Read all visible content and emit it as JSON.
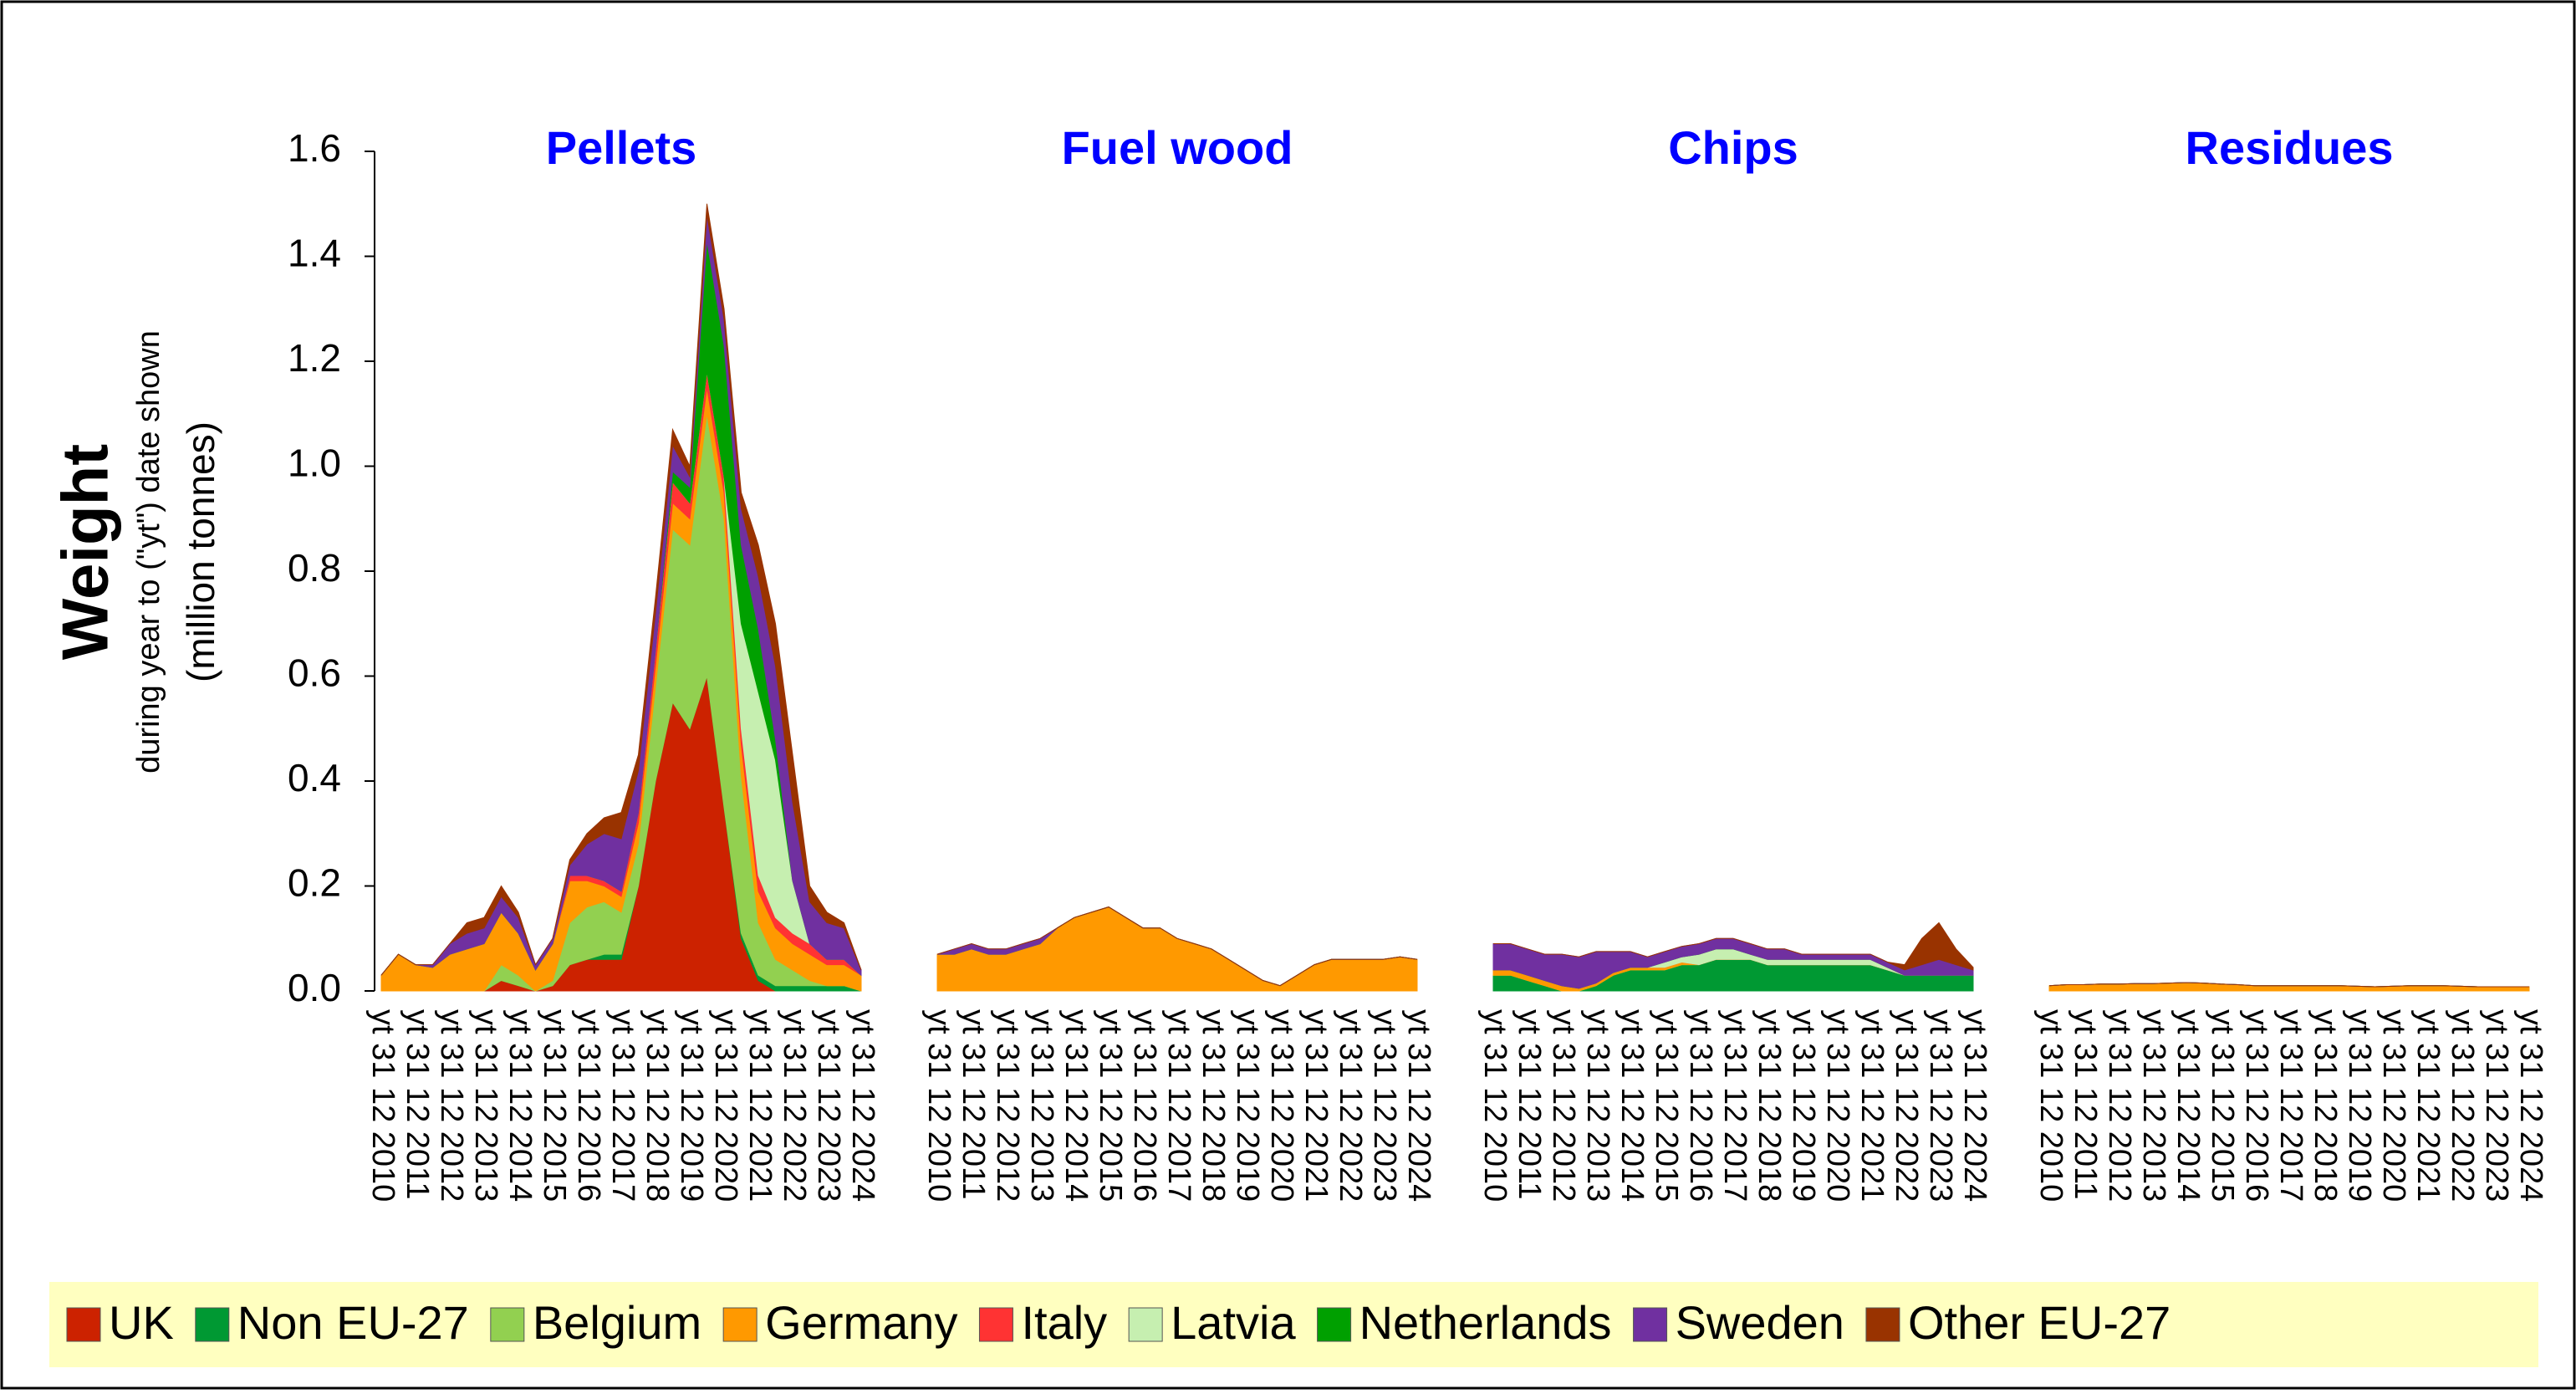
{
  "chart_data": {
    "type": "area",
    "stacked": true,
    "panels": [
      "Pellets",
      "Fuel wood",
      "Chips",
      "Residues"
    ],
    "y_title": "Weight",
    "y_subtitle": "during year to (\"yt\") date shown",
    "y_unit": "(million tonnes)",
    "categories": [
      "yt 31 12 2010",
      null,
      "yt 31 12 2011",
      null,
      "yt 31 12 2012",
      null,
      "yt 31 12 2013",
      null,
      "yt 31 12 2014",
      null,
      "yt 31 12 2015",
      null,
      "yt 31 12 2016",
      null,
      "yt 31 12 2017",
      null,
      "yt 31 12 2018",
      null,
      "yt 31 12 2019",
      null,
      "yt 31 12 2020",
      null,
      "yt 31 12 2021",
      null,
      "yt 31 12 2022",
      null,
      "yt 31 12 2023",
      null,
      "yt 31 12 2024"
    ],
    "ylim": [
      0,
      1.6
    ],
    "yticks": [
      {
        "value": 0,
        "label": "0.0"
      },
      0.2,
      0.4,
      0.6,
      0.8,
      {
        "value": 1,
        "label": "1.0"
      },
      1.2,
      1.4,
      1.6
    ],
    "series": [
      {
        "name": "UK",
        "color": "#cc2200",
        "values": [
          [
            0,
            0,
            0,
            0,
            0,
            0,
            0,
            0.02,
            0.01,
            0,
            0.01,
            0.05,
            0.06,
            0.06,
            0.06,
            0.2,
            0.4,
            0.55,
            0.5,
            0.6,
            0.35,
            0.1,
            0.02,
            0,
            0,
            0,
            0,
            0,
            0
          ],
          [
            0,
            0,
            0,
            0,
            0,
            0,
            0,
            0,
            0,
            0,
            0,
            0,
            0,
            0,
            0,
            0,
            0,
            0,
            0,
            0,
            0,
            0,
            0,
            0,
            0,
            0,
            0,
            0,
            0
          ],
          [
            0,
            0,
            0,
            0,
            0,
            0,
            0,
            0,
            0,
            0,
            0,
            0,
            0,
            0,
            0,
            0,
            0,
            0,
            0,
            0,
            0,
            0,
            0,
            0,
            0,
            0,
            0,
            0,
            0
          ],
          [
            0,
            0,
            0,
            0,
            0,
            0,
            0,
            0,
            0,
            0,
            0,
            0,
            0,
            0,
            0,
            0,
            0,
            0,
            0,
            0,
            0,
            0,
            0,
            0,
            0,
            0,
            0,
            0,
            0
          ]
        ]
      },
      {
        "name": "Non EU-27",
        "color": "#009933",
        "values": [
          [
            0,
            0,
            0,
            0,
            0,
            0,
            0,
            0,
            0,
            0,
            0,
            0,
            0,
            0.01,
            0.01,
            0,
            0,
            0,
            0,
            0,
            0,
            0.01,
            0.01,
            0.01,
            0.01,
            0.01,
            0.01,
            0.01,
            0
          ],
          [
            0,
            0,
            0,
            0,
            0,
            0,
            0,
            0,
            0,
            0,
            0,
            0,
            0,
            0,
            0,
            0,
            0,
            0,
            0,
            0,
            0,
            0,
            0,
            0,
            0,
            0,
            0,
            0,
            0
          ],
          [
            0.03,
            0.03,
            0.02,
            0.01,
            0,
            0,
            0.01,
            0.03,
            0.04,
            0.04,
            0.04,
            0.05,
            0.05,
            0.06,
            0.06,
            0.06,
            0.05,
            0.05,
            0.05,
            0.05,
            0.05,
            0.05,
            0.05,
            0.04,
            0.03,
            0.03,
            0.03,
            0.03,
            0.03
          ],
          [
            0,
            0,
            0,
            0,
            0,
            0,
            0,
            0,
            0,
            0,
            0,
            0,
            0,
            0,
            0,
            0,
            0,
            0,
            0,
            0,
            0,
            0,
            0,
            0,
            0,
            0,
            0,
            0,
            0
          ]
        ]
      },
      {
        "name": "Belgium",
        "color": "#92d050",
        "values": [
          [
            0,
            0,
            0,
            0,
            0,
            0,
            0,
            0.03,
            0.02,
            0,
            0.01,
            0.08,
            0.1,
            0.1,
            0.08,
            0.08,
            0.18,
            0.33,
            0.35,
            0.5,
            0.55,
            0.3,
            0.1,
            0.05,
            0.03,
            0.01,
            0,
            0,
            0
          ],
          [
            0,
            0,
            0,
            0,
            0,
            0,
            0,
            0,
            0,
            0,
            0,
            0,
            0,
            0,
            0,
            0,
            0,
            0,
            0,
            0,
            0,
            0,
            0,
            0,
            0,
            0,
            0,
            0,
            0
          ],
          [
            0,
            0,
            0,
            0,
            0,
            0,
            0,
            0,
            0,
            0,
            0,
            0,
            0,
            0,
            0,
            0,
            0,
            0,
            0,
            0,
            0,
            0,
            0,
            0,
            0,
            0,
            0,
            0,
            0
          ],
          [
            0,
            0,
            0,
            0,
            0,
            0,
            0,
            0,
            0,
            0,
            0,
            0,
            0,
            0,
            0,
            0,
            0,
            0,
            0,
            0,
            0,
            0,
            0,
            0,
            0,
            0,
            0,
            0,
            0
          ]
        ]
      },
      {
        "name": "Germany",
        "color": "#ff9900",
        "values": [
          [
            0.03,
            0.07,
            0.05,
            0.045,
            0.07,
            0.08,
            0.09,
            0.1,
            0.08,
            0.04,
            0.07,
            0.08,
            0.05,
            0.03,
            0.03,
            0.04,
            0.04,
            0.05,
            0.05,
            0.05,
            0.05,
            0.06,
            0.06,
            0.06,
            0.05,
            0.05,
            0.04,
            0.04,
            0.03
          ],
          [
            0.07,
            0.07,
            0.08,
            0.07,
            0.07,
            0.08,
            0.09,
            0.12,
            0.14,
            0.15,
            0.16,
            0.14,
            0.12,
            0.12,
            0.1,
            0.09,
            0.08,
            0.06,
            0.04,
            0.02,
            0.01,
            0.03,
            0.05,
            0.06,
            0.06,
            0.06,
            0.06,
            0.065,
            0.06
          ],
          [
            0.01,
            0.01,
            0.01,
            0.01,
            0.01,
            0.005,
            0.005,
            0.005,
            0.005,
            0.005,
            0.005,
            0.005,
            0,
            0,
            0,
            0,
            0,
            0,
            0,
            0,
            0,
            0,
            0,
            0,
            0,
            0,
            0,
            0,
            0
          ],
          [
            0.01,
            0.012,
            0.012,
            0.013,
            0.013,
            0.014,
            0.014,
            0.015,
            0.016,
            0.015,
            0.013,
            0.012,
            0.01,
            0.01,
            0.01,
            0.01,
            0.01,
            0.01,
            0.009,
            0.008,
            0.009,
            0.01,
            0.01,
            0.01,
            0.009,
            0.008,
            0.008,
            0.008,
            0.008
          ]
        ]
      },
      {
        "name": "Italy",
        "color": "#ff3333",
        "values": [
          [
            0,
            0,
            0,
            0,
            0,
            0,
            0,
            0,
            0,
            0,
            0,
            0.01,
            0.01,
            0.01,
            0.01,
            0.02,
            0.03,
            0.04,
            0.03,
            0.03,
            0.03,
            0.03,
            0.03,
            0.02,
            0.02,
            0.02,
            0.01,
            0.01,
            0
          ],
          [
            0,
            0,
            0,
            0,
            0,
            0,
            0,
            0,
            0,
            0,
            0,
            0,
            0,
            0,
            0,
            0,
            0,
            0,
            0,
            0,
            0,
            0,
            0,
            0,
            0,
            0,
            0,
            0,
            0
          ],
          [
            0,
            0,
            0,
            0,
            0,
            0,
            0,
            0,
            0,
            0,
            0,
            0,
            0,
            0,
            0,
            0,
            0,
            0,
            0,
            0,
            0,
            0,
            0,
            0,
            0,
            0,
            0,
            0,
            0
          ],
          [
            0,
            0,
            0,
            0,
            0,
            0,
            0,
            0,
            0,
            0,
            0,
            0,
            0,
            0,
            0,
            0,
            0,
            0,
            0,
            0,
            0,
            0,
            0,
            0,
            0,
            0,
            0,
            0,
            0
          ]
        ]
      },
      {
        "name": "Latvia",
        "color": "#c6efb0",
        "values": [
          [
            0,
            0,
            0,
            0,
            0,
            0,
            0,
            0,
            0,
            0,
            0,
            0,
            0,
            0,
            0,
            0,
            0,
            0,
            0,
            0,
            0,
            0.2,
            0.35,
            0.3,
            0.1,
            0,
            0,
            0,
            0
          ],
          [
            0,
            0,
            0,
            0,
            0,
            0,
            0,
            0,
            0,
            0,
            0,
            0,
            0,
            0,
            0,
            0,
            0,
            0,
            0,
            0,
            0,
            0,
            0,
            0,
            0,
            0,
            0,
            0,
            0
          ],
          [
            0,
            0,
            0,
            0,
            0,
            0,
            0,
            0,
            0,
            0,
            0.01,
            0.01,
            0.02,
            0.02,
            0.02,
            0.01,
            0.01,
            0.01,
            0.01,
            0.01,
            0.01,
            0.01,
            0.01,
            0.005,
            0,
            0,
            0,
            0,
            0
          ],
          [
            0,
            0,
            0,
            0,
            0,
            0,
            0,
            0,
            0,
            0,
            0,
            0,
            0,
            0,
            0,
            0,
            0,
            0,
            0,
            0,
            0,
            0,
            0,
            0,
            0,
            0,
            0,
            0,
            0
          ]
        ]
      },
      {
        "name": "Netherlands",
        "color": "#00a000",
        "values": [
          [
            0,
            0,
            0,
            0,
            0,
            0,
            0,
            0,
            0,
            0,
            0,
            0,
            0,
            0,
            0,
            0,
            0,
            0.02,
            0.03,
            0.25,
            0.25,
            0.15,
            0.12,
            0.04,
            0,
            0,
            0,
            0,
            0
          ],
          [
            0,
            0,
            0,
            0,
            0,
            0,
            0,
            0,
            0,
            0,
            0,
            0,
            0,
            0,
            0,
            0,
            0,
            0,
            0,
            0,
            0,
            0,
            0,
            0,
            0,
            0,
            0,
            0,
            0
          ],
          [
            0,
            0,
            0,
            0,
            0,
            0,
            0,
            0,
            0,
            0,
            0,
            0,
            0,
            0,
            0,
            0,
            0,
            0,
            0,
            0,
            0,
            0,
            0,
            0,
            0,
            0,
            0,
            0,
            0
          ],
          [
            0,
            0,
            0,
            0,
            0,
            0,
            0,
            0,
            0,
            0,
            0,
            0,
            0,
            0,
            0,
            0,
            0,
            0,
            0,
            0,
            0,
            0,
            0,
            0,
            0,
            0,
            0,
            0,
            0
          ]
        ]
      },
      {
        "name": "Sweden",
        "color": "#7030a0",
        "values": [
          [
            0,
            0,
            0,
            0.005,
            0.02,
            0.03,
            0.03,
            0.03,
            0.03,
            0.01,
            0.01,
            0.02,
            0.06,
            0.09,
            0.1,
            0.08,
            0.07,
            0.05,
            0.02,
            0.05,
            0.05,
            0.07,
            0.1,
            0.14,
            0.15,
            0.08,
            0.07,
            0.06,
            0.01
          ],
          [
            0,
            0.01,
            0.01,
            0.01,
            0.01,
            0.01,
            0.01,
            0,
            0,
            0,
            0,
            0,
            0,
            0,
            0,
            0,
            0,
            0,
            0,
            0,
            0,
            0,
            0,
            0,
            0,
            0,
            0,
            0,
            0
          ],
          [
            0.05,
            0.05,
            0.05,
            0.05,
            0.06,
            0.06,
            0.06,
            0.04,
            0.03,
            0.02,
            0.02,
            0.02,
            0.02,
            0.02,
            0.02,
            0.02,
            0.02,
            0.02,
            0.01,
            0.01,
            0.01,
            0.01,
            0.01,
            0.01,
            0.01,
            0.02,
            0.03,
            0.02,
            0.01
          ],
          [
            0,
            0,
            0,
            0,
            0,
            0,
            0,
            0,
            0,
            0,
            0,
            0,
            0,
            0,
            0,
            0,
            0,
            0,
            0,
            0,
            0,
            0,
            0,
            0,
            0,
            0,
            0,
            0,
            0
          ]
        ]
      },
      {
        "name": "Other EU-27",
        "color": "#993300",
        "values": [
          [
            0,
            0,
            0,
            0,
            0,
            0.02,
            0.02,
            0.02,
            0.01,
            0,
            0,
            0.01,
            0.02,
            0.03,
            0.05,
            0.03,
            0.03,
            0.03,
            0.02,
            0.02,
            0.02,
            0.03,
            0.06,
            0.08,
            0.09,
            0.03,
            0.02,
            0.01,
            0
          ],
          [
            0,
            0,
            0,
            0,
            0,
            0,
            0,
            0,
            0,
            0,
            0,
            0,
            0,
            0,
            0,
            0,
            0,
            0,
            0,
            0,
            0,
            0,
            0,
            0,
            0,
            0,
            0,
            0,
            0
          ],
          [
            0,
            0,
            0,
            0,
            0,
            0,
            0,
            0,
            0,
            0,
            0,
            0,
            0,
            0,
            0,
            0,
            0,
            0,
            0,
            0,
            0,
            0,
            0,
            0,
            0.01,
            0.05,
            0.07,
            0.03,
            0.005
          ],
          [
            0,
            0,
            0,
            0,
            0,
            0,
            0,
            0,
            0,
            0,
            0,
            0,
            0,
            0,
            0,
            0,
            0,
            0,
            0,
            0,
            0,
            0,
            0,
            0,
            0,
            0,
            0,
            0,
            0
          ]
        ]
      }
    ]
  }
}
